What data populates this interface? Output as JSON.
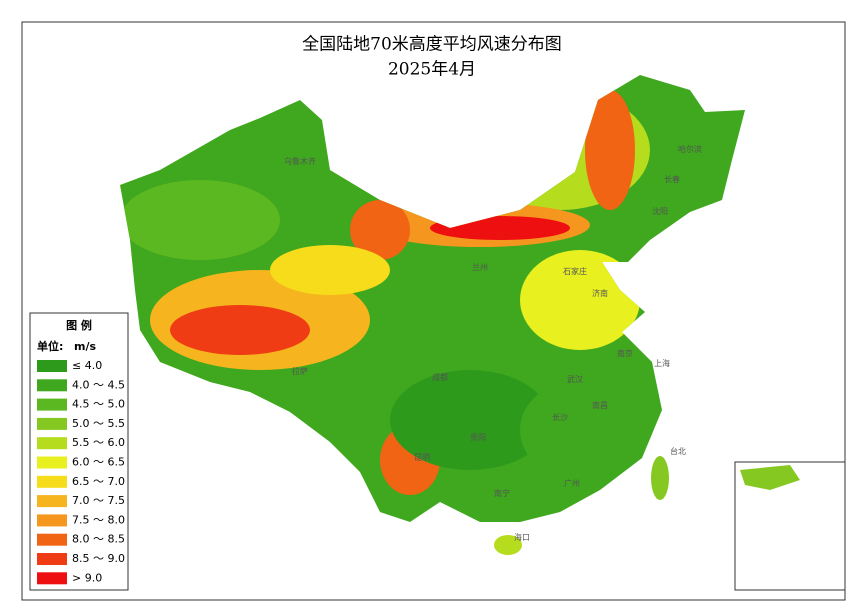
{
  "title": "全国陆地70米高度平均风速分布图",
  "subtitle": "2025年4月",
  "legend": {
    "title": "图  例",
    "unit_label": "单位:",
    "unit": "m/s",
    "items": [
      {
        "label": "≤ 4.0",
        "color": "#2e9a1c"
      },
      {
        "label": "4.0 ～ 4.5",
        "color": "#3fa81e"
      },
      {
        "label": "4.5 ～ 5.0",
        "color": "#5cb820"
      },
      {
        "label": "5.0 ～ 5.5",
        "color": "#86c822"
      },
      {
        "label": "5.5 ～ 6.0",
        "color": "#b6dc1e"
      },
      {
        "label": "6.0 ～ 6.5",
        "color": "#e8f020"
      },
      {
        "label": "6.5 ～ 7.0",
        "color": "#f6dc1a"
      },
      {
        "label": "7.0 ～ 7.5",
        "color": "#f6b41e"
      },
      {
        "label": "7.5 ～ 8.0",
        "color": "#f5961e"
      },
      {
        "label": "8.0 ～ 8.5",
        "color": "#f06414"
      },
      {
        "label": "8.5 ～ 9.0",
        "color": "#ef3c14"
      },
      {
        "label": "> 9.0",
        "color": "#ee1010"
      }
    ]
  },
  "cities": [
    "乌鲁木齐",
    "哈尔滨",
    "长春",
    "沈阳",
    "石家庄",
    "济南",
    "兰州",
    "拉萨",
    "成都",
    "武汉",
    "南京",
    "上海",
    "南昌",
    "长沙",
    "贵阳",
    "昆明",
    "南宁",
    "广州",
    "台北",
    "海口"
  ]
}
